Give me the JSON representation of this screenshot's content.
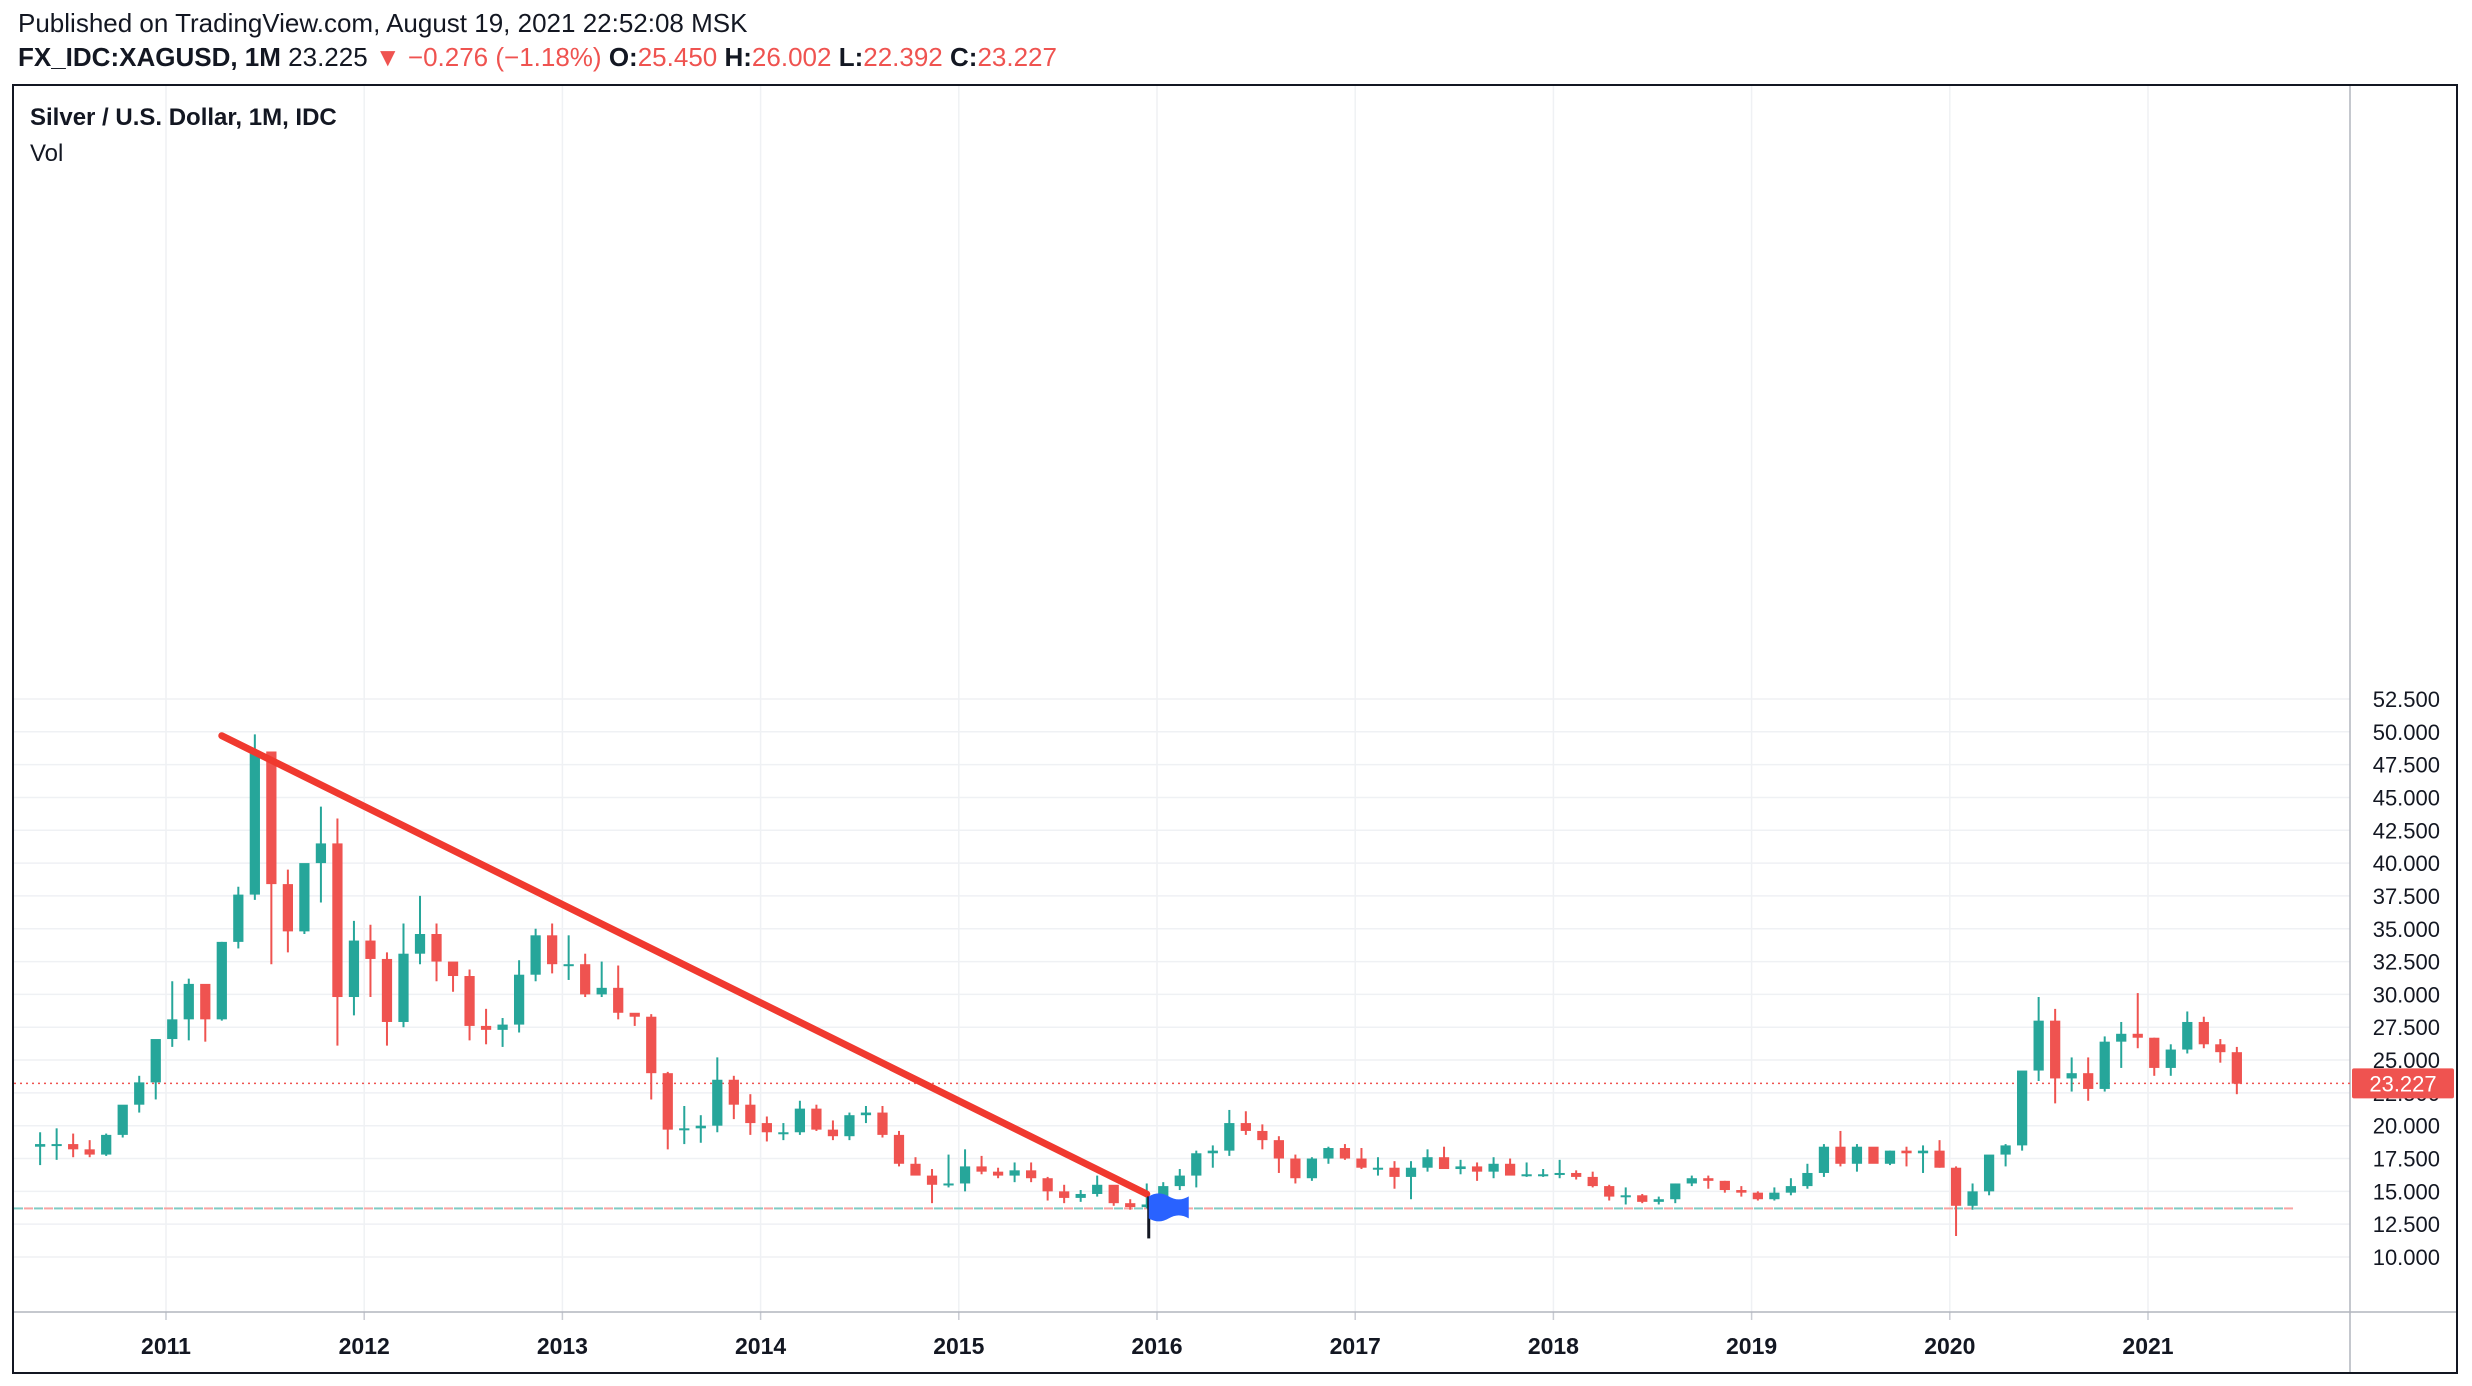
{
  "header": {
    "published": "Published on TradingView.com, August 19, 2021 22:52:08 MSK",
    "symbol": "FX_IDC:XAGUSD, 1M",
    "last": "23.225",
    "arrow": "▼",
    "change": "−0.276 (−1.18%)",
    "o_label": "O:",
    "o_value": "25.450",
    "h_label": "H:",
    "h_value": "26.002",
    "l_label": "L:",
    "l_value": "22.392",
    "c_label": "C:",
    "c_value": "23.227"
  },
  "legend": {
    "title": "Silver / U.S. Dollar, 1M, IDC",
    "volume": "Vol"
  },
  "colors": {
    "up": "#26a69a",
    "down": "#ef5350",
    "grid": "#eff1f4",
    "text": "#131722",
    "trendline": "#f0392f",
    "flag": "#2962ff"
  },
  "chart_data": {
    "type": "candlestick",
    "x_axis": {
      "ticks": [
        "2011",
        "2012",
        "2013",
        "2014",
        "2015",
        "2016",
        "2017",
        "2018",
        "2019",
        "2020",
        "2021"
      ]
    },
    "y_axis": {
      "ticks": [
        "10.000",
        "12.500",
        "15.000",
        "17.500",
        "20.000",
        "22.500",
        "25.000",
        "27.500",
        "30.000",
        "32.500",
        "35.000",
        "37.500",
        "40.000",
        "42.500",
        "45.000",
        "47.500",
        "50.000",
        "52.500"
      ],
      "range": [
        7.8,
        54.0
      ],
      "last_price_label": "23.227"
    },
    "start": "2010-05",
    "candles": [
      [
        18.4,
        19.5,
        17.0,
        18.6
      ],
      [
        18.6,
        19.8,
        17.4,
        18.6
      ],
      [
        18.6,
        19.4,
        17.6,
        18.2
      ],
      [
        18.2,
        18.9,
        17.6,
        17.8
      ],
      [
        17.8,
        19.4,
        17.7,
        19.3
      ],
      [
        19.3,
        21.2,
        19.1,
        21.6
      ],
      [
        21.6,
        23.8,
        21.0,
        23.3
      ],
      [
        23.3,
        26.5,
        22.0,
        26.6
      ],
      [
        26.6,
        31.0,
        26.0,
        28.1
      ],
      [
        28.1,
        31.2,
        26.5,
        30.8
      ],
      [
        30.8,
        30.7,
        26.4,
        28.1
      ],
      [
        28.1,
        34.0,
        28.0,
        34.0
      ],
      [
        34.0,
        38.2,
        33.5,
        37.6
      ],
      [
        37.6,
        49.8,
        37.2,
        48.5
      ],
      [
        48.5,
        48.5,
        32.3,
        38.4
      ],
      [
        38.4,
        39.5,
        33.2,
        34.8
      ],
      [
        34.8,
        39.9,
        34.6,
        40.0
      ],
      [
        40.0,
        44.3,
        37.0,
        41.5
      ],
      [
        41.5,
        43.4,
        26.1,
        29.8
      ],
      [
        29.8,
        35.6,
        28.4,
        34.1
      ],
      [
        34.1,
        35.3,
        29.8,
        32.7
      ],
      [
        32.7,
        33.2,
        26.1,
        27.9
      ],
      [
        27.9,
        35.4,
        27.5,
        33.1
      ],
      [
        33.1,
        37.5,
        32.3,
        34.6
      ],
      [
        34.6,
        35.4,
        31.0,
        32.5
      ],
      [
        32.5,
        32.4,
        30.2,
        31.4
      ],
      [
        31.4,
        31.9,
        26.5,
        27.6
      ],
      [
        27.6,
        28.9,
        26.2,
        27.3
      ],
      [
        27.3,
        28.2,
        26.0,
        27.7
      ],
      [
        27.7,
        32.6,
        27.1,
        31.5
      ],
      [
        31.5,
        35.0,
        31.0,
        34.5
      ],
      [
        34.5,
        35.4,
        31.6,
        32.3
      ],
      [
        32.3,
        34.5,
        31.1,
        32.3
      ],
      [
        32.3,
        33.1,
        29.8,
        30.0
      ],
      [
        30.0,
        32.5,
        29.8,
        30.5
      ],
      [
        30.5,
        32.2,
        28.1,
        28.6
      ],
      [
        28.6,
        28.5,
        27.6,
        28.3
      ],
      [
        28.3,
        28.5,
        22.0,
        24.0
      ],
      [
        24.0,
        24.1,
        18.2,
        19.7
      ],
      [
        19.7,
        21.5,
        18.6,
        19.8
      ],
      [
        19.8,
        20.8,
        18.7,
        20.0
      ],
      [
        20.0,
        25.2,
        19.5,
        23.5
      ],
      [
        23.5,
        23.8,
        20.5,
        21.6
      ],
      [
        21.6,
        22.4,
        19.3,
        20.2
      ],
      [
        20.2,
        20.7,
        18.8,
        19.5
      ],
      [
        19.5,
        20.2,
        18.9,
        19.5
      ],
      [
        19.5,
        21.9,
        19.3,
        21.3
      ],
      [
        21.3,
        21.6,
        19.6,
        19.7
      ],
      [
        19.7,
        20.4,
        18.9,
        19.2
      ],
      [
        19.2,
        21.0,
        18.9,
        20.8
      ],
      [
        20.8,
        21.5,
        20.2,
        21.0
      ],
      [
        21.0,
        21.5,
        19.1,
        19.3
      ],
      [
        19.3,
        19.6,
        16.9,
        17.1
      ],
      [
        17.1,
        17.6,
        16.3,
        16.2
      ],
      [
        16.2,
        16.7,
        14.1,
        15.5
      ],
      [
        15.5,
        17.8,
        15.3,
        15.6
      ],
      [
        15.6,
        18.2,
        15.0,
        16.9
      ],
      [
        16.9,
        17.7,
        16.3,
        16.5
      ],
      [
        16.5,
        16.8,
        16.0,
        16.2
      ],
      [
        16.2,
        17.2,
        15.7,
        16.6
      ],
      [
        16.6,
        17.2,
        15.7,
        16.0
      ],
      [
        16.0,
        16.1,
        14.3,
        15.0
      ],
      [
        15.0,
        15.5,
        14.1,
        14.5
      ],
      [
        14.5,
        15.1,
        14.2,
        14.8
      ],
      [
        14.8,
        16.2,
        14.6,
        15.5
      ],
      [
        15.5,
        15.4,
        13.9,
        14.1
      ],
      [
        14.1,
        14.4,
        13.6,
        13.8
      ],
      [
        13.8,
        15.6,
        13.7,
        14.0
      ],
      [
        14.0,
        15.7,
        13.8,
        15.4
      ],
      [
        15.4,
        16.7,
        15.1,
        16.2
      ],
      [
        16.2,
        18.1,
        15.3,
        17.9
      ],
      [
        17.9,
        18.5,
        16.8,
        18.1
      ],
      [
        18.1,
        21.2,
        17.7,
        20.2
      ],
      [
        20.2,
        21.1,
        19.3,
        19.6
      ],
      [
        19.6,
        20.1,
        18.2,
        18.9
      ],
      [
        18.9,
        19.2,
        16.4,
        17.5
      ],
      [
        17.5,
        17.8,
        15.6,
        16.0
      ],
      [
        16.0,
        17.6,
        15.8,
        17.5
      ],
      [
        17.5,
        18.4,
        17.1,
        18.3
      ],
      [
        18.3,
        18.6,
        17.4,
        17.5
      ],
      [
        17.5,
        18.3,
        16.7,
        16.8
      ],
      [
        16.8,
        17.6,
        16.2,
        16.8
      ],
      [
        16.8,
        17.3,
        15.2,
        16.1
      ],
      [
        16.1,
        17.3,
        14.4,
        16.8
      ],
      [
        16.8,
        18.2,
        16.5,
        17.6
      ],
      [
        17.6,
        18.4,
        16.8,
        16.7
      ],
      [
        16.7,
        17.4,
        16.3,
        16.9
      ],
      [
        16.9,
        17.2,
        15.8,
        16.5
      ],
      [
        16.5,
        17.6,
        16.0,
        17.1
      ],
      [
        17.1,
        17.5,
        16.6,
        16.2
      ],
      [
        16.2,
        17.2,
        16.1,
        16.3
      ],
      [
        16.3,
        16.7,
        16.1,
        16.3
      ],
      [
        16.3,
        17.4,
        16.0,
        16.4
      ],
      [
        16.4,
        16.6,
        15.9,
        16.1
      ],
      [
        16.1,
        16.5,
        15.3,
        15.4
      ],
      [
        15.4,
        15.5,
        14.3,
        14.6
      ],
      [
        14.6,
        15.3,
        14.0,
        14.7
      ],
      [
        14.7,
        14.8,
        14.1,
        14.2
      ],
      [
        14.2,
        14.6,
        14.0,
        14.4
      ],
      [
        14.4,
        15.6,
        14.1,
        15.6
      ],
      [
        15.6,
        16.2,
        15.4,
        16.0
      ],
      [
        16.0,
        16.2,
        15.2,
        15.8
      ],
      [
        15.8,
        15.8,
        14.9,
        15.1
      ],
      [
        15.1,
        15.4,
        14.6,
        14.9
      ],
      [
        14.9,
        15.0,
        14.3,
        14.4
      ],
      [
        14.4,
        15.3,
        14.3,
        14.9
      ],
      [
        14.9,
        16.0,
        14.7,
        15.4
      ],
      [
        15.4,
        17.1,
        15.2,
        16.4
      ],
      [
        16.4,
        18.6,
        16.1,
        18.4
      ],
      [
        18.4,
        19.6,
        16.9,
        17.1
      ],
      [
        17.1,
        18.6,
        16.5,
        18.4
      ],
      [
        18.4,
        18.3,
        17.3,
        17.1
      ],
      [
        17.1,
        18.1,
        17.0,
        18.1
      ],
      [
        18.1,
        18.4,
        16.9,
        17.9
      ],
      [
        17.9,
        18.5,
        16.4,
        18.1
      ],
      [
        18.1,
        18.9,
        16.8,
        16.8
      ],
      [
        16.8,
        16.9,
        11.6,
        13.9
      ],
      [
        13.9,
        15.6,
        13.6,
        15.0
      ],
      [
        15.0,
        17.6,
        14.7,
        17.8
      ],
      [
        17.8,
        18.6,
        16.9,
        18.5
      ],
      [
        18.5,
        24.1,
        18.1,
        24.2
      ],
      [
        24.2,
        29.8,
        23.4,
        28.0
      ],
      [
        28.0,
        28.9,
        21.7,
        23.6
      ],
      [
        23.6,
        25.2,
        22.6,
        24.0
      ],
      [
        24.0,
        25.2,
        21.9,
        22.8
      ],
      [
        22.8,
        26.8,
        22.6,
        26.4
      ],
      [
        26.4,
        27.9,
        24.4,
        27.0
      ],
      [
        27.0,
        30.1,
        25.9,
        26.7
      ],
      [
        26.7,
        26.7,
        23.8,
        24.4
      ],
      [
        24.4,
        26.2,
        23.8,
        25.8
      ],
      [
        25.8,
        28.7,
        25.5,
        27.9
      ],
      [
        27.9,
        28.3,
        25.9,
        26.2
      ],
      [
        26.2,
        26.6,
        24.8,
        25.6
      ],
      [
        25.6,
        26.0,
        22.4,
        23.2
      ]
    ],
    "annotations": [
      {
        "type": "trend_line",
        "from": {
          "date": "2011-04",
          "price": 49.7
        },
        "to": {
          "date": "2015-12",
          "price": 14.8
        }
      },
      {
        "type": "horizontal_line",
        "price": 13.7,
        "style": "dashed"
      },
      {
        "type": "horizontal_line",
        "price": 23.227,
        "style": "dotted"
      }
    ]
  }
}
